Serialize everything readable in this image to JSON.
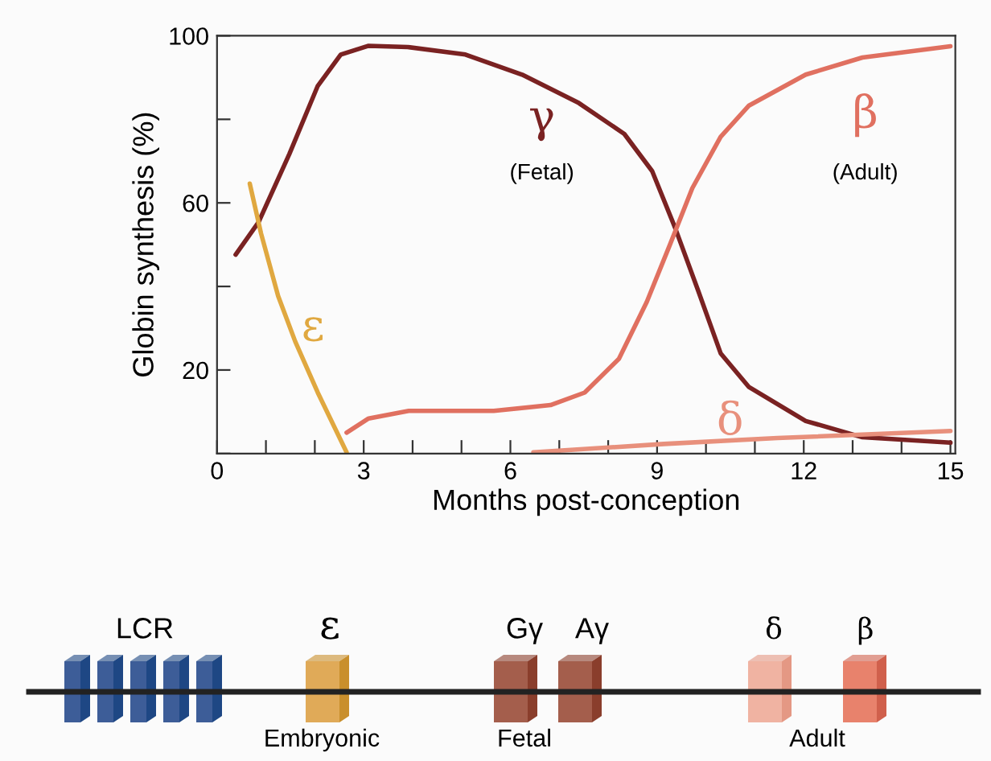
{
  "chart_data": {
    "type": "line",
    "xlabel": "Months post-conception",
    "ylabel": "Globin synthesis (%)",
    "xlim": [
      0,
      15.1
    ],
    "ylim": [
      0,
      100
    ],
    "xticks": [
      0,
      {
        "value": 1,
        "label": null
      },
      {
        "value": 2,
        "label": null
      },
      3,
      {
        "value": 4,
        "label": null
      },
      {
        "value": 5,
        "label": null
      },
      6,
      {
        "value": 7,
        "label": null
      },
      {
        "value": 8,
        "label": null
      },
      9,
      {
        "value": 10,
        "label": null
      },
      {
        "value": 11,
        "label": null
      },
      12,
      {
        "value": 13,
        "label": null
      },
      {
        "value": 14,
        "label": null
      },
      15
    ],
    "yticks": [
      {
        "value": 0,
        "label": null
      },
      20,
      {
        "value": 40,
        "label": null
      },
      60,
      {
        "value": 80,
        "label": null
      },
      100
    ],
    "grid": false,
    "marker": "none",
    "line_style": "solid",
    "series": [
      {
        "name": "γ",
        "color": "#7a2222",
        "x": [
          0.38,
          0.85,
          1.48,
          2.06,
          2.53,
          3.1,
          3.9,
          5.08,
          6.24,
          7.4,
          8.33,
          8.9,
          9.37,
          9.84,
          10.3,
          10.88,
          12.04,
          13.2,
          15
        ],
        "values": [
          47.6,
          55.4,
          71.7,
          88,
          95.5,
          97.6,
          97.3,
          95.5,
          90.7,
          83.9,
          76.5,
          67.6,
          54,
          39,
          24,
          15.9,
          7.8,
          3.9,
          2.6
        ]
      },
      {
        "name": "β",
        "color": "#e07060",
        "x": [
          2.65,
          3.1,
          3.92,
          5.66,
          6.82,
          7.52,
          8.22,
          8.79,
          9.26,
          9.72,
          10.3,
          10.88,
          12.04,
          13.2,
          15
        ],
        "values": [
          5,
          8.4,
          10.2,
          10.2,
          11.6,
          14.6,
          22.7,
          36.3,
          49.9,
          63.5,
          75.8,
          83.3,
          90.7,
          94.8,
          97.5
        ]
      },
      {
        "name": "ε",
        "color": "#e0a840",
        "x": [
          0.67,
          0.9,
          1.25,
          1.6,
          2.06,
          2.65
        ],
        "values": [
          64.6,
          52.7,
          37.7,
          26.8,
          14.6,
          0.3
        ]
      },
      {
        "name": "δ",
        "color": "#e8907c",
        "x": [
          6.47,
          9.14,
          11.46,
          15
        ],
        "values": [
          0.3,
          2.3,
          3.7,
          5.4
        ]
      }
    ],
    "annotations": [
      "(Fetal)",
      "(Adult)",
      "LCR",
      "ε",
      "Gγ",
      "Aγ",
      "δ",
      "β",
      "Embryonic",
      "Fetal",
      "Adult"
    ]
  }
}
